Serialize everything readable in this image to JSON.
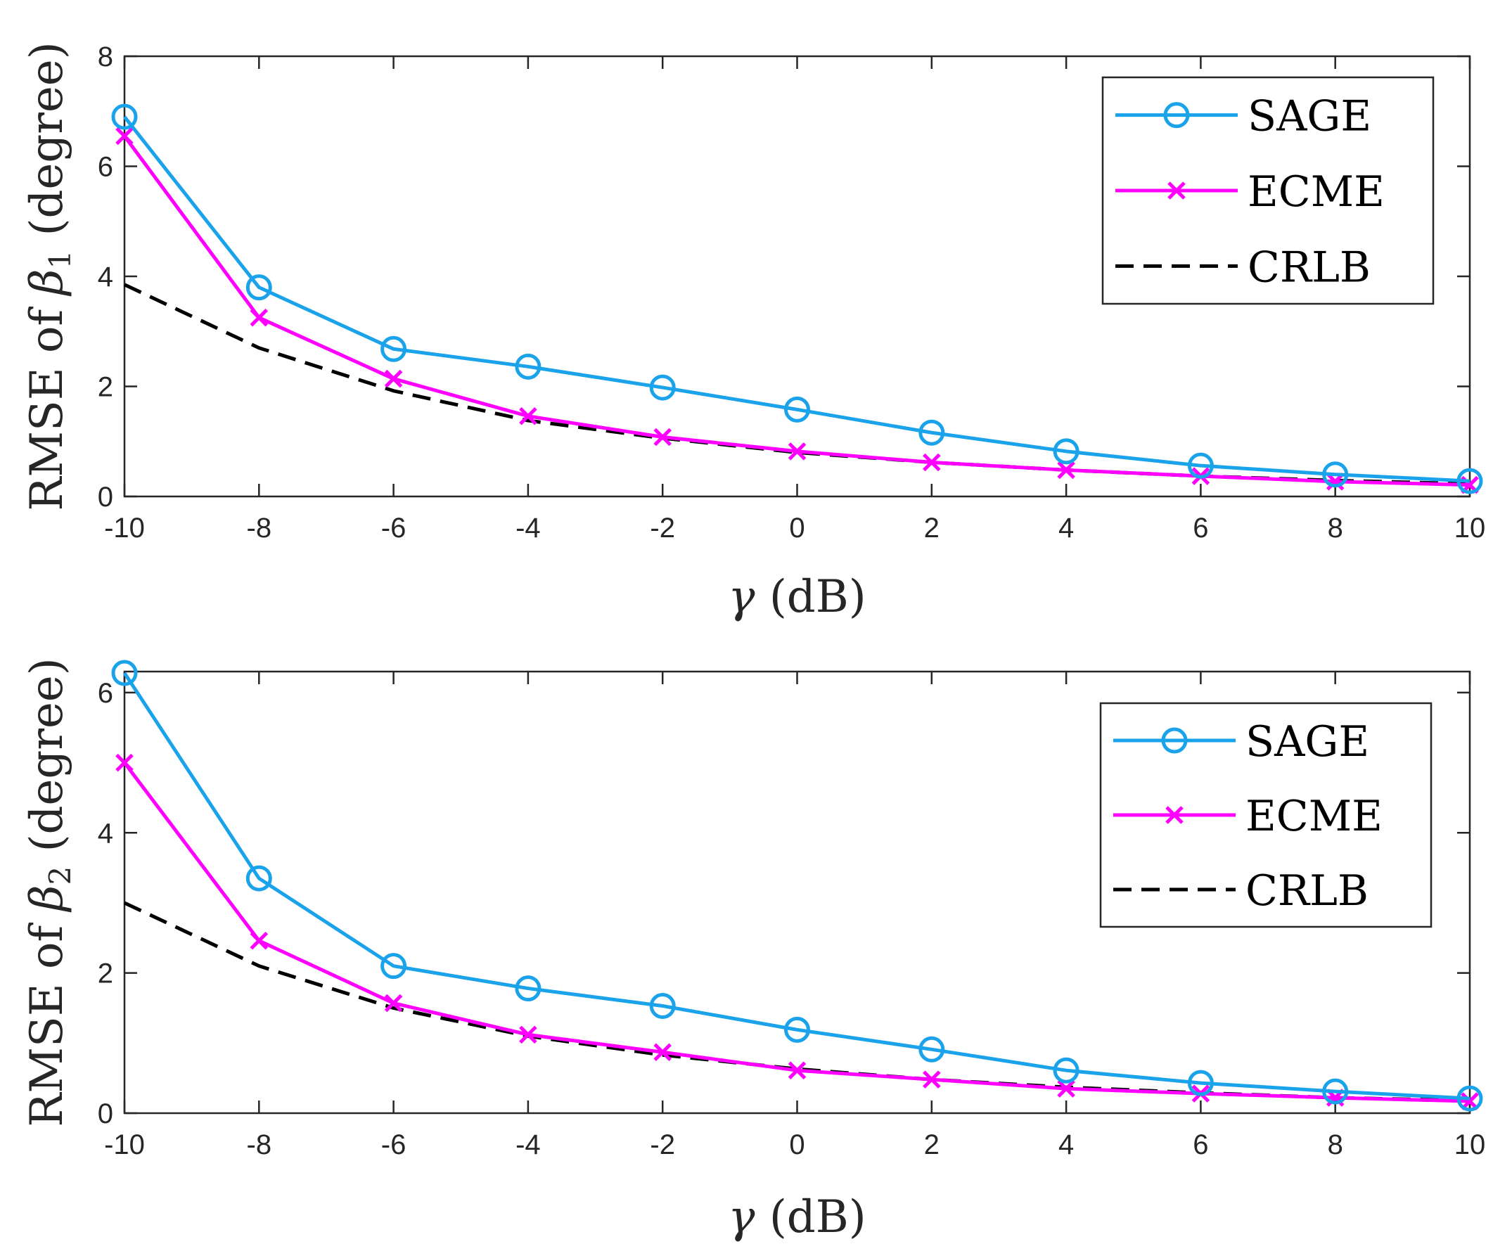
{
  "chart_data": [
    {
      "type": "line",
      "x": [
        -10,
        -8,
        -6,
        -4,
        -2,
        0,
        2,
        4,
        6,
        8,
        10
      ],
      "xlim": [
        -10,
        10
      ],
      "ylim": [
        0,
        8
      ],
      "xticks": [
        "-10",
        "-8",
        "-6",
        "-4",
        "-2",
        "0",
        "2",
        "4",
        "6",
        "8",
        "10"
      ],
      "yticks": [
        "0",
        "2",
        "4",
        "6",
        "8"
      ],
      "xlabel_symbol": "γ",
      "xlabel_unit": "(dB)",
      "ylabel_prefix": "RMSE of",
      "ylabel_symbol": "β",
      "ylabel_subscript": "1",
      "ylabel_suffix": "(degree)",
      "legend_position": "top-right",
      "series": [
        {
          "name": "SAGE",
          "color": "#1aa3ea",
          "marker": "circle",
          "style": "solid",
          "values": [
            6.9,
            3.8,
            2.68,
            2.36,
            1.98,
            1.58,
            1.16,
            0.82,
            0.56,
            0.4,
            0.28
          ]
        },
        {
          "name": "ECME",
          "color": "#ff00ff",
          "marker": "x",
          "style": "solid",
          "values": [
            6.55,
            3.25,
            2.14,
            1.46,
            1.08,
            0.82,
            0.62,
            0.48,
            0.37,
            0.27,
            0.21
          ]
        },
        {
          "name": "CRLB",
          "color": "#000000",
          "marker": "none",
          "style": "dashed",
          "values": [
            3.85,
            2.7,
            1.92,
            1.38,
            1.06,
            0.8,
            0.62,
            0.48,
            0.37,
            0.29,
            0.23
          ]
        }
      ]
    },
    {
      "type": "line",
      "x": [
        -10,
        -8,
        -6,
        -4,
        -2,
        0,
        2,
        4,
        6,
        8,
        10
      ],
      "xlim": [
        -10,
        10
      ],
      "ylim": [
        0,
        6.3
      ],
      "xticks": [
        "-10",
        "-8",
        "-6",
        "-4",
        "-2",
        "0",
        "2",
        "4",
        "6",
        "8",
        "10"
      ],
      "yticks": [
        "0",
        "2",
        "4",
        "6"
      ],
      "xlabel_symbol": "γ",
      "xlabel_unit": "(dB)",
      "ylabel_prefix": "RMSE of",
      "ylabel_symbol": "β",
      "ylabel_subscript": "2",
      "ylabel_suffix": "(degree)",
      "legend_position": "top-right",
      "series": [
        {
          "name": "SAGE",
          "color": "#1aa3ea",
          "marker": "circle",
          "style": "solid",
          "values": [
            6.28,
            3.35,
            2.1,
            1.78,
            1.53,
            1.19,
            0.91,
            0.61,
            0.43,
            0.31,
            0.21
          ]
        },
        {
          "name": "ECME",
          "color": "#ff00ff",
          "marker": "x",
          "style": "solid",
          "values": [
            5.0,
            2.46,
            1.57,
            1.12,
            0.87,
            0.61,
            0.48,
            0.35,
            0.28,
            0.22,
            0.17
          ]
        },
        {
          "name": "CRLB",
          "color": "#000000",
          "marker": "none",
          "style": "dashed",
          "values": [
            3.0,
            2.1,
            1.5,
            1.1,
            0.83,
            0.63,
            0.48,
            0.37,
            0.29,
            0.22,
            0.18
          ]
        }
      ]
    }
  ]
}
